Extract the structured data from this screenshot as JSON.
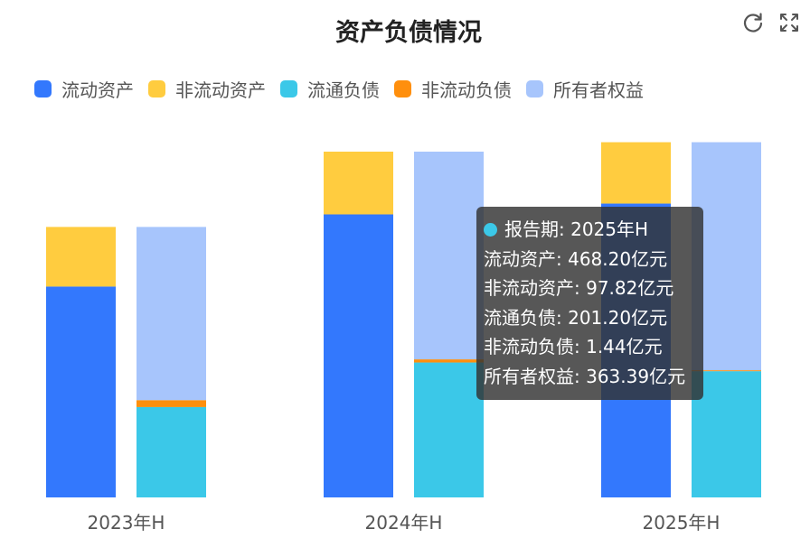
{
  "chart_data": {
    "type": "bar",
    "title": "资产负债情况",
    "categories": [
      "2023年H",
      "2024年H",
      "2025年H"
    ],
    "stacks": [
      {
        "stack": "assets",
        "series": [
          {
            "name": "流动资产",
            "color": "#3378fd",
            "values": [
              336,
              451,
              468.2
            ]
          },
          {
            "name": "非流动资产",
            "color": "#ffcc3f",
            "values": [
              95.0,
              100.0,
              97.82
            ]
          }
        ]
      },
      {
        "stack": "liabilities_equity",
        "series": [
          {
            "name": "流通负债",
            "color": "#3bc8e8",
            "values": [
              144,
              215,
              201.2
            ]
          },
          {
            "name": "非流动负债",
            "color": "#ff8f0d",
            "values": [
              11.0,
              5.0,
              1.44
            ]
          },
          {
            "name": "所有者权益",
            "color": "#a7c5fc",
            "values": [
              276,
              331,
              363.39
            ]
          }
        ]
      }
    ],
    "ylim": [
      0,
      620
    ],
    "grid": false,
    "legend_position": "top-left"
  },
  "legend": [
    {
      "label": "流动资产",
      "color": "#3378fd"
    },
    {
      "label": "非流动资产",
      "color": "#ffcc3f"
    },
    {
      "label": "流通负债",
      "color": "#3bc8e8"
    },
    {
      "label": "非流动负债",
      "color": "#ff8f0d"
    },
    {
      "label": "所有者权益",
      "color": "#a7c5fc"
    }
  ],
  "toolbar": {
    "refresh_icon": "refresh-icon",
    "fullscreen_icon": "fullscreen-icon"
  },
  "tooltip": {
    "period_line": "报告期: 2025年H",
    "lines": [
      "流动资产: 468.20亿元",
      "非流动资产: 97.82亿元",
      "流通负债: 201.20亿元",
      "非流动负债: 1.44亿元",
      "所有者权益: 363.39亿元"
    ]
  }
}
